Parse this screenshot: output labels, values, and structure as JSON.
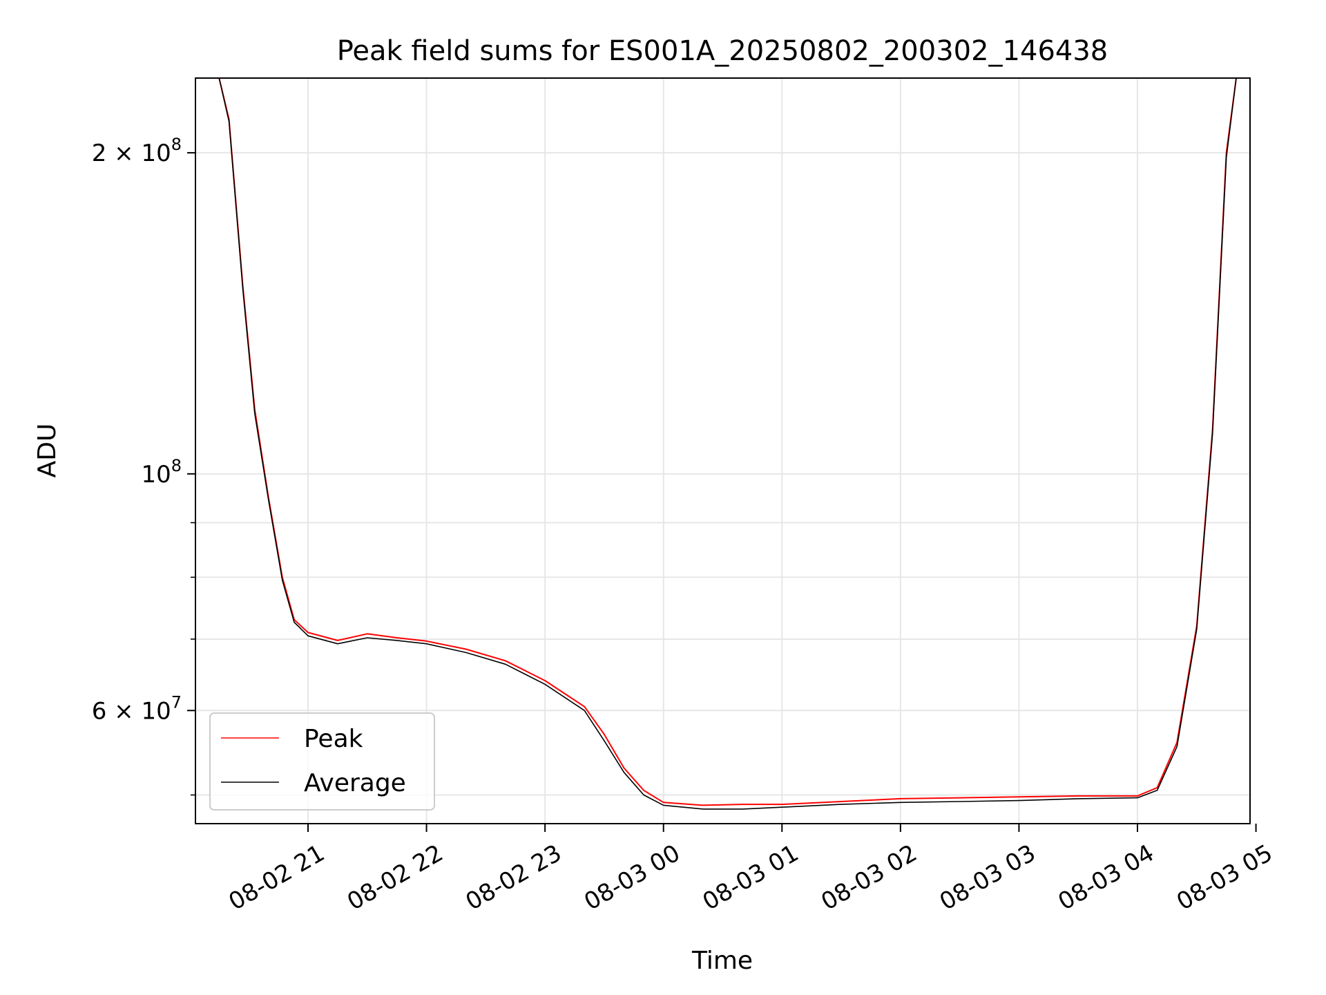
{
  "chart_data": {
    "type": "line",
    "title": "Peak field sums for ES001A_20250802_200302_146438",
    "xlabel": "Time",
    "ylabel": "ADU",
    "yscale": "log",
    "ylim": [
      47000000,
      235000000
    ],
    "xlim": [
      "2025-08-02T20:03",
      "2025-08-03T04:57"
    ],
    "grid": true,
    "legend": "lower-left",
    "x_ticks": [
      {
        "value": "2025-08-02T21:00",
        "label": "08-02 21"
      },
      {
        "value": "2025-08-02T22:00",
        "label": "08-02 22"
      },
      {
        "value": "2025-08-02T23:00",
        "label": "08-02 23"
      },
      {
        "value": "2025-08-03T00:00",
        "label": "08-03 00"
      },
      {
        "value": "2025-08-03T01:00",
        "label": "08-03 01"
      },
      {
        "value": "2025-08-03T02:00",
        "label": "08-03 02"
      },
      {
        "value": "2025-08-03T03:00",
        "label": "08-03 03"
      },
      {
        "value": "2025-08-03T04:00",
        "label": "08-03 04"
      },
      {
        "value": "2025-08-03T05:00",
        "label": "08-03 05"
      }
    ],
    "y_ticks": [
      {
        "value": 60000000,
        "label": "6 × 10⁷",
        "mantissa": "6 × 10",
        "exponent": "7"
      },
      {
        "value": 100000000,
        "label": "10⁸",
        "mantissa": "10",
        "exponent": "8"
      },
      {
        "value": 200000000,
        "label": "2 × 10⁸",
        "mantissa": "2 × 10",
        "exponent": "8"
      }
    ],
    "y_minor_ticks": [
      50000000,
      70000000,
      80000000,
      90000000
    ],
    "series": [
      {
        "name": "Peak",
        "color": "#ff0000",
        "points": [
          [
            "2025-08-02T20:03",
            235000000
          ],
          [
            "2025-08-02T20:15",
            235000000
          ],
          [
            "2025-08-02T20:20",
            215000000
          ],
          [
            "2025-08-02T20:27",
            150000000
          ],
          [
            "2025-08-02T20:33",
            115000000
          ],
          [
            "2025-08-02T20:40",
            95000000
          ],
          [
            "2025-08-02T20:47",
            80000000
          ],
          [
            "2025-08-02T20:53",
            73000000
          ],
          [
            "2025-08-02T21:00",
            71000000
          ],
          [
            "2025-08-02T21:15",
            69800000
          ],
          [
            "2025-08-02T21:30",
            70800000
          ],
          [
            "2025-08-02T21:45",
            70200000
          ],
          [
            "2025-08-02T22:00",
            69700000
          ],
          [
            "2025-08-02T22:20",
            68500000
          ],
          [
            "2025-08-02T22:40",
            66800000
          ],
          [
            "2025-08-02T23:00",
            64000000
          ],
          [
            "2025-08-02T23:20",
            60500000
          ],
          [
            "2025-08-02T23:30",
            57000000
          ],
          [
            "2025-08-02T23:40",
            53000000
          ],
          [
            "2025-08-02T23:50",
            50500000
          ],
          [
            "2025-08-03T00:00",
            49200000
          ],
          [
            "2025-08-03T00:20",
            48900000
          ],
          [
            "2025-08-03T00:40",
            49000000
          ],
          [
            "2025-08-03T01:00",
            49000000
          ],
          [
            "2025-08-03T01:30",
            49300000
          ],
          [
            "2025-08-03T02:00",
            49600000
          ],
          [
            "2025-08-03T02:30",
            49700000
          ],
          [
            "2025-08-03T03:00",
            49800000
          ],
          [
            "2025-08-03T03:30",
            49900000
          ],
          [
            "2025-08-03T04:00",
            49900000
          ],
          [
            "2025-08-03T04:10",
            50800000
          ],
          [
            "2025-08-03T04:20",
            56000000
          ],
          [
            "2025-08-03T04:30",
            72000000
          ],
          [
            "2025-08-03T04:38",
            110000000
          ],
          [
            "2025-08-03T04:45",
            200000000
          ],
          [
            "2025-08-03T04:50",
            235000000
          ],
          [
            "2025-08-03T04:57",
            235000000
          ]
        ]
      },
      {
        "name": "Average",
        "color": "#000000",
        "points": [
          [
            "2025-08-02T20:03",
            235000000
          ],
          [
            "2025-08-02T20:15",
            235000000
          ],
          [
            "2025-08-02T20:20",
            214000000
          ],
          [
            "2025-08-02T20:27",
            149000000
          ],
          [
            "2025-08-02T20:33",
            114000000
          ],
          [
            "2025-08-02T20:40",
            94500000
          ],
          [
            "2025-08-02T20:47",
            79500000
          ],
          [
            "2025-08-02T20:53",
            72600000
          ],
          [
            "2025-08-02T21:00",
            70500000
          ],
          [
            "2025-08-02T21:15",
            69300000
          ],
          [
            "2025-08-02T21:30",
            70200000
          ],
          [
            "2025-08-02T21:45",
            69800000
          ],
          [
            "2025-08-02T22:00",
            69300000
          ],
          [
            "2025-08-02T22:20",
            68000000
          ],
          [
            "2025-08-02T22:40",
            66300000
          ],
          [
            "2025-08-02T23:00",
            63500000
          ],
          [
            "2025-08-02T23:20",
            60000000
          ],
          [
            "2025-08-02T23:30",
            56200000
          ],
          [
            "2025-08-02T23:40",
            52500000
          ],
          [
            "2025-08-02T23:50",
            50000000
          ],
          [
            "2025-08-03T00:00",
            48900000
          ],
          [
            "2025-08-03T00:20",
            48500000
          ],
          [
            "2025-08-03T00:40",
            48500000
          ],
          [
            "2025-08-03T01:00",
            48700000
          ],
          [
            "2025-08-03T01:30",
            49000000
          ],
          [
            "2025-08-03T02:00",
            49200000
          ],
          [
            "2025-08-03T02:30",
            49300000
          ],
          [
            "2025-08-03T03:00",
            49400000
          ],
          [
            "2025-08-03T03:30",
            49600000
          ],
          [
            "2025-08-03T04:00",
            49700000
          ],
          [
            "2025-08-03T04:10",
            50500000
          ],
          [
            "2025-08-03T04:20",
            55500000
          ],
          [
            "2025-08-03T04:30",
            71500000
          ],
          [
            "2025-08-03T04:38",
            109000000
          ],
          [
            "2025-08-03T04:45",
            198000000
          ],
          [
            "2025-08-03T04:50",
            235000000
          ],
          [
            "2025-08-03T04:57",
            235000000
          ]
        ]
      }
    ]
  }
}
